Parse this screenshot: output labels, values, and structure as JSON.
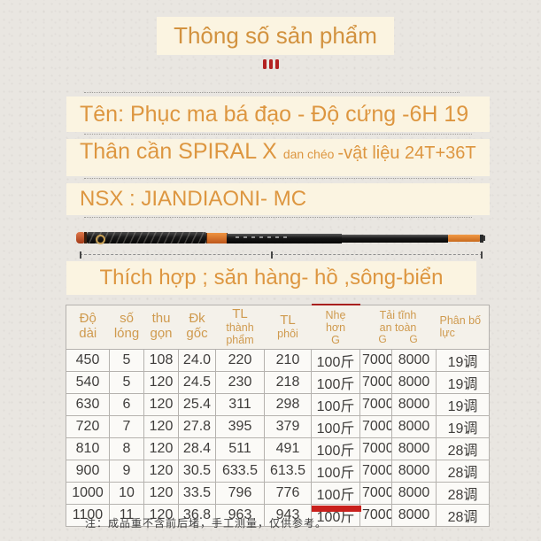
{
  "title": "Thông số sản phẩm",
  "icons": {
    "section_divider": "three-vertical-bars",
    "rod_image": "fishing-rod-product-photo",
    "measure_line": "dashed-length-measure-line"
  },
  "colors": {
    "accent_orange": "#d8963f",
    "highlight_red": "#c9201c",
    "cream_panel": "#fbf4e1"
  },
  "spec_lines": {
    "name": "Tên: Phục ma bá đạo - Độ cứng -6H 19",
    "body_main": "Thân cần SPIRAL X",
    "body_small": "dan chéo",
    "body_tail": "-vật liệu 24T+36T",
    "manufacturer": "NSX : JIANDIAONI- MC",
    "suitable": "Thích hợp ; săn hàng- hồ ,sông-biển"
  },
  "table": {
    "headers": {
      "length": "Độ\ndài",
      "sections": "số\nlóng",
      "closed_length": "thu\ngọn",
      "butt_diameter": "Đk\ngốc",
      "weight_finished_top": "TL",
      "weight_finished_sub": "thành\nphẩm",
      "weight_blank_top": "TL",
      "weight_blank_sub": "phôi",
      "lighter_than": "Nhẹ\nhơn\nG",
      "safe_static_load": "Tải tĩnh\nan toàn",
      "g_left": "G",
      "g_right": "G",
      "force_distribution": "Phân bố\nlực"
    },
    "rows": [
      [
        "450",
        "5",
        "108",
        "24.0",
        "220",
        "210",
        "100斤",
        "7000",
        "8000",
        "19调"
      ],
      [
        "540",
        "5",
        "120",
        "24.5",
        "230",
        "218",
        "100斤",
        "7000",
        "8000",
        "19调"
      ],
      [
        "630",
        "6",
        "120",
        "25.4",
        "311",
        "298",
        "100斤",
        "7000",
        "8000",
        "19调"
      ],
      [
        "720",
        "7",
        "120",
        "27.8",
        "395",
        "379",
        "100斤",
        "7000",
        "8000",
        "19调"
      ],
      [
        "810",
        "8",
        "120",
        "28.4",
        "511",
        "491",
        "100斤",
        "7000",
        "8000",
        "28调"
      ],
      [
        "900",
        "9",
        "120",
        "30.5",
        "633.5",
        "613.5",
        "100斤",
        "7000",
        "8000",
        "28调"
      ],
      [
        "1000",
        "10",
        "120",
        "33.5",
        "796",
        "776",
        "100斤",
        "7000",
        "8000",
        "28调"
      ],
      [
        "1100",
        "11",
        "120",
        "36.8",
        "963",
        "943",
        "100斤",
        "7000",
        "8000",
        "28调"
      ]
    ],
    "note": "注：成品重不含前后堵，手工测量，仅供参考。"
  }
}
